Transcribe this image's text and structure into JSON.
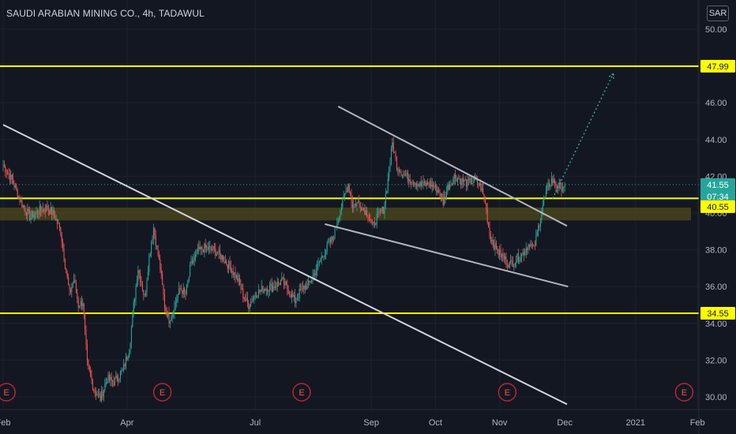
{
  "header": {
    "symbol_title": "SAUDI ARABIAN MINING CO., 4h, TADAWUL",
    "currency": "SAR"
  },
  "chart_data": {
    "type": "candlestick",
    "symbol": "SAUDI ARABIAN MINING CO.",
    "interval": "4h",
    "exchange": "TADAWUL",
    "currency": "SAR",
    "ylim": [
      29.5,
      51.5
    ],
    "y_ticks": [
      30.0,
      32.0,
      34.0,
      36.0,
      38.0,
      40.0,
      42.0,
      44.0,
      46.0,
      48.0,
      50.0
    ],
    "y_tick_labels": [
      "30.00",
      "32.00",
      "34.00",
      "36.00",
      "38.00",
      "40.00",
      "42.00",
      "44.00",
      "46.00",
      "48.00",
      "50.00"
    ],
    "x_ticks": [
      {
        "label": "Feb",
        "index": 0
      },
      {
        "label": "Apr",
        "index": 112
      },
      {
        "label": "Jul",
        "index": 228
      },
      {
        "label": "Sep",
        "index": 333
      },
      {
        "label": "Oct",
        "index": 391
      },
      {
        "label": "Nov",
        "index": 449
      },
      {
        "label": "Dec",
        "index": 508
      },
      {
        "label": "2021",
        "index": 572
      },
      {
        "label": "Feb",
        "index": 628
      }
    ],
    "horizontal_levels": [
      {
        "price": 47.99,
        "label": "47.99",
        "color": "#ffff00"
      },
      {
        "price": 40.8,
        "label": "",
        "color": "#ffff00"
      },
      {
        "price": 34.55,
        "label": "34.55",
        "color": "#ffff00"
      }
    ],
    "zone": {
      "from": 39.6,
      "to": 40.3,
      "color": "#4d4a1c"
    },
    "price_labels": [
      {
        "price": 41.55,
        "text": "41.55",
        "bg": "#26a69a",
        "fg": "#ffffff"
      },
      {
        "price": 40.9,
        "text": "07:34",
        "bg": "#26a69a",
        "fg": "#ffffff"
      },
      {
        "price": 40.35,
        "text": "40.55",
        "bg": "#ffff00",
        "fg": "#131722"
      },
      {
        "price": 47.99,
        "text": "47.99",
        "bg": "#ffff00",
        "fg": "#131722"
      },
      {
        "price": 34.55,
        "text": "34.55",
        "bg": "#ffff00",
        "fg": "#131722"
      }
    ],
    "last_price": 41.55,
    "trendlines": [
      {
        "from": [
          0,
          44.8
        ],
        "to": [
          510,
          29.6
        ],
        "color": "#d1d4dc"
      },
      {
        "from": [
          303,
          45.8
        ],
        "to": [
          510,
          39.3
        ],
        "color": "#b2b5be"
      },
      {
        "from": [
          291,
          39.4
        ],
        "to": [
          511,
          36.0
        ],
        "color": "#b2b5be"
      }
    ],
    "projection": {
      "from": [
        497,
        40.8
      ],
      "to": [
        552,
        47.6
      ],
      "color": "#26a69a"
    },
    "earnings_markers": [
      {
        "index": 3,
        "text": "E"
      },
      {
        "index": 144,
        "text": "E"
      },
      {
        "index": 270,
        "text": "E"
      },
      {
        "index": 456,
        "text": "E"
      },
      {
        "index": 616,
        "text": "E"
      }
    ],
    "colors": {
      "up": "#26a69a",
      "down": "#ef5350",
      "background": "#131722",
      "grid": "#1e222d"
    },
    "close_path": [
      [
        0,
        42.6
      ],
      [
        8,
        41.8
      ],
      [
        16,
        40.6
      ],
      [
        24,
        39.8
      ],
      [
        32,
        40.1
      ],
      [
        40,
        40.3
      ],
      [
        46,
        39.9
      ],
      [
        52,
        39.0
      ],
      [
        56,
        37.2
      ],
      [
        60,
        35.6
      ],
      [
        64,
        36.4
      ],
      [
        68,
        35.0
      ],
      [
        72,
        35.2
      ],
      [
        76,
        31.8
      ],
      [
        82,
        30.4
      ],
      [
        88,
        29.9
      ],
      [
        94,
        31.0
      ],
      [
        100,
        30.8
      ],
      [
        108,
        31.4
      ],
      [
        114,
        32.6
      ],
      [
        118,
        35.0
      ],
      [
        122,
        37.0
      ],
      [
        128,
        35.4
      ],
      [
        132,
        37.6
      ],
      [
        136,
        39.2
      ],
      [
        142,
        37.0
      ],
      [
        146,
        35.0
      ],
      [
        150,
        34.2
      ],
      [
        154,
        34.8
      ],
      [
        160,
        35.9
      ],
      [
        165,
        35.6
      ],
      [
        170,
        37.2
      ],
      [
        176,
        37.9
      ],
      [
        182,
        38.1
      ],
      [
        190,
        38.0
      ],
      [
        198,
        37.6
      ],
      [
        206,
        37.0
      ],
      [
        212,
        36.4
      ],
      [
        218,
        35.4
      ],
      [
        222,
        35.0
      ],
      [
        228,
        35.6
      ],
      [
        236,
        35.9
      ],
      [
        244,
        36.0
      ],
      [
        252,
        36.3
      ],
      [
        258,
        35.8
      ],
      [
        264,
        35.2
      ],
      [
        270,
        35.9
      ],
      [
        276,
        36.1
      ],
      [
        282,
        36.8
      ],
      [
        288,
        37.6
      ],
      [
        294,
        38.3
      ],
      [
        298,
        38.6
      ],
      [
        304,
        40.0
      ],
      [
        308,
        40.8
      ],
      [
        312,
        41.6
      ],
      [
        316,
        40.4
      ],
      [
        322,
        40.6
      ],
      [
        326,
        40.2
      ],
      [
        330,
        40.0
      ],
      [
        334,
        39.2
      ],
      [
        338,
        39.8
      ],
      [
        344,
        40.2
      ],
      [
        348,
        41.8
      ],
      [
        352,
        43.8
      ],
      [
        356,
        42.6
      ],
      [
        362,
        42.1
      ],
      [
        370,
        41.8
      ],
      [
        378,
        41.5
      ],
      [
        386,
        41.6
      ],
      [
        394,
        41.2
      ],
      [
        398,
        40.6
      ],
      [
        402,
        41.4
      ],
      [
        408,
        42.0
      ],
      [
        414,
        41.8
      ],
      [
        420,
        41.6
      ],
      [
        426,
        41.8
      ],
      [
        432,
        41.4
      ],
      [
        436,
        40.6
      ],
      [
        440,
        38.8
      ],
      [
        446,
        38.0
      ],
      [
        452,
        37.6
      ],
      [
        458,
        37.2
      ],
      [
        464,
        37.5
      ],
      [
        470,
        37.8
      ],
      [
        476,
        38.4
      ],
      [
        480,
        38.0
      ],
      [
        484,
        39.2
      ],
      [
        488,
        40.4
      ],
      [
        492,
        41.3
      ],
      [
        496,
        41.8
      ],
      [
        500,
        41.5
      ],
      [
        504,
        41.4
      ],
      [
        508,
        41.55
      ]
    ]
  }
}
